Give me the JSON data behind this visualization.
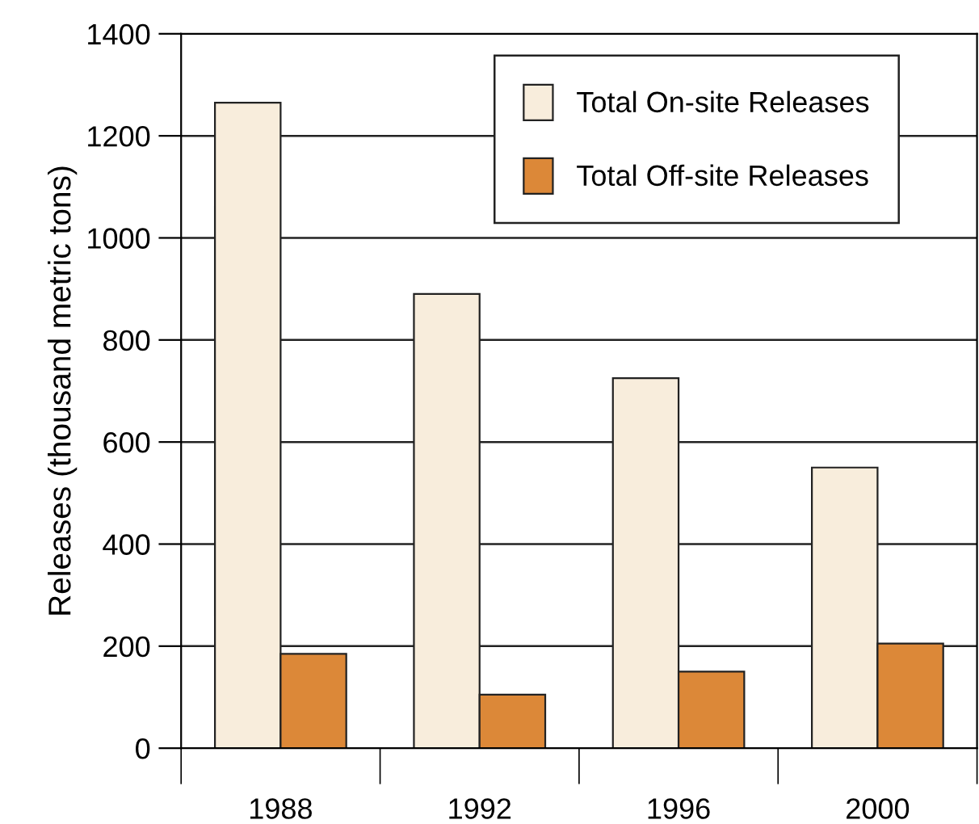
{
  "chart_data": {
    "type": "bar",
    "ylabel": "Releases (thousand metric tons)",
    "categories": [
      "1988",
      "1992",
      "1996",
      "2000"
    ],
    "series": [
      {
        "name": "Total On-site Releases",
        "color": "#f8eddc",
        "values": [
          1265,
          890,
          725,
          550
        ]
      },
      {
        "name": "Total Off-site Releases",
        "color": "#dc8838",
        "values": [
          185,
          105,
          150,
          205
        ]
      }
    ],
    "ylim": [
      0,
      1400
    ],
    "yticks": [
      0,
      200,
      400,
      600,
      800,
      1000,
      1200,
      1400
    ],
    "grid": "y",
    "legend": "top right"
  }
}
